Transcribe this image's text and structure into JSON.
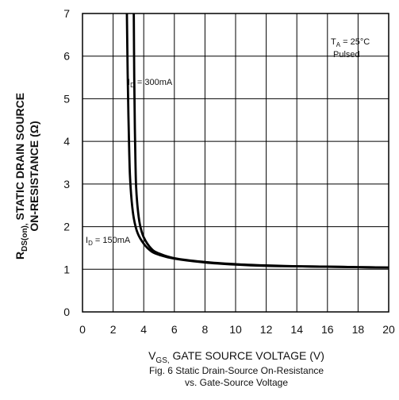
{
  "chart_data": {
    "type": "line",
    "title": "",
    "xlabel": {
      "main": "V",
      "sub": "GS,",
      "rest": " GATE SOURCE VOLTAGE (V)"
    },
    "ylabel": {
      "main": "R",
      "sub": "DS(on),",
      "line1_rest": " STATIC DRAIN SOURCE",
      "line2": "ON-RESISTANCE (Ω)"
    },
    "caption_line1": "Fig. 6  Static Drain-Source On-Resistance",
    "caption_line2": "vs. Gate-Source Voltage",
    "xlim": [
      0,
      20
    ],
    "ylim": [
      0,
      7
    ],
    "x_ticks": [
      "0",
      "2",
      "4",
      "6",
      "8",
      "10",
      "12",
      "14",
      "16",
      "18",
      "20"
    ],
    "y_ticks": [
      "0",
      "1",
      "2",
      "3",
      "4",
      "5",
      "6",
      "7"
    ],
    "grid": true,
    "conditions": {
      "ta_main": "T",
      "ta_sub": "A",
      "ta_rest": " = 25°C",
      "line2": "Pulsed"
    },
    "series": [
      {
        "name": "I_D = 300mA",
        "label_main": "I",
        "label_sub": "D",
        "label_rest": " = 300mA",
        "x": [
          3.35,
          3.38,
          3.42,
          3.46,
          3.5,
          3.6,
          3.75,
          4.0,
          4.5,
          5.0,
          6.0,
          8.0,
          10.0,
          12.0,
          14.0,
          16.0,
          18.0,
          20.0
        ],
        "y": [
          7.0,
          5.5,
          4.3,
          3.5,
          2.95,
          2.45,
          2.05,
          1.75,
          1.48,
          1.37,
          1.26,
          1.17,
          1.12,
          1.09,
          1.07,
          1.06,
          1.05,
          1.04
        ]
      },
      {
        "name": "I_D = 150mA",
        "label_main": "I",
        "label_sub": "D",
        "label_rest": " = 150mA",
        "x": [
          2.9,
          2.95,
          3.0,
          3.05,
          3.1,
          3.2,
          3.35,
          3.6,
          4.0,
          4.5,
          5.0,
          6.0,
          8.0,
          10.0,
          12.0,
          14.0,
          16.0,
          18.0,
          20.0
        ],
        "y": [
          7.0,
          5.6,
          4.6,
          3.8,
          3.2,
          2.65,
          2.2,
          1.85,
          1.6,
          1.42,
          1.34,
          1.25,
          1.16,
          1.11,
          1.08,
          1.07,
          1.06,
          1.05,
          1.04
        ]
      }
    ]
  }
}
